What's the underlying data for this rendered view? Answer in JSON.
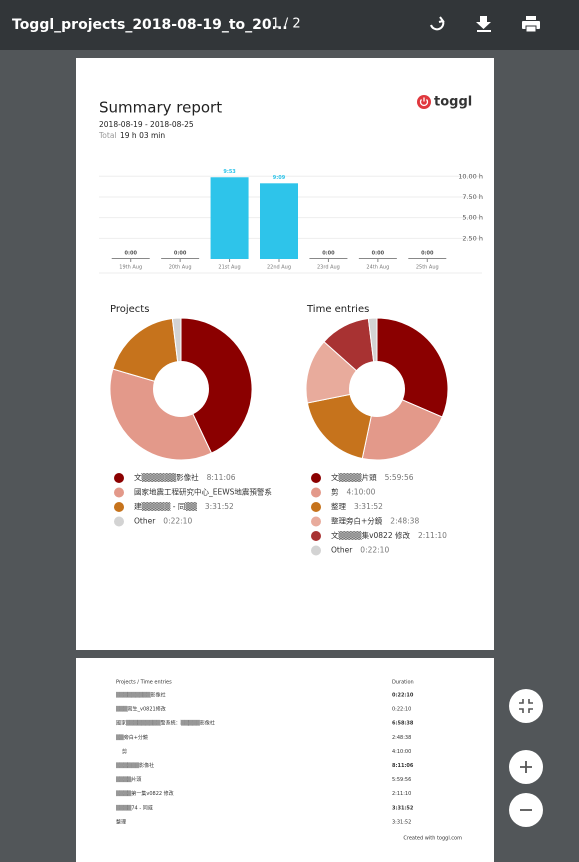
{
  "toolbar": {
    "file_name": "Toggl_projects_2018-08-19_to_20...",
    "page_indicator": "1 / 2"
  },
  "report": {
    "title": "Summary report",
    "date_range": "2018-08-19  -  2018-08-25",
    "total_label": "Total",
    "total_value": "19 h 03 min",
    "logo": "toggl",
    "bar_chart": {
      "type": "bar",
      "categories": [
        "19th Aug",
        "20th Aug",
        "21st Aug",
        "22nd Aug",
        "23rd Aug",
        "24th Aug",
        "25th Aug"
      ],
      "values": [
        0,
        0,
        9.88,
        9.15,
        0,
        0,
        0
      ],
      "value_labels": [
        "0:00",
        "0:00",
        "9:53",
        "9:09",
        "0:00",
        "0:00",
        "0:00"
      ],
      "color": "#2ec4ea",
      "ylim": [
        0,
        11
      ],
      "yticks": [
        {
          "value": 2.5,
          "label": "2.50 h"
        },
        {
          "value": 5,
          "label": "5.00 h"
        },
        {
          "value": 7.5,
          "label": "7.50 h"
        },
        {
          "value": 10,
          "label": "10.00 h"
        }
      ],
      "grid": true
    },
    "projects": {
      "type": "pie",
      "title": "Projects",
      "names": [
        "文▒▒▒▒▒▒影像社",
        "國家地震工程研究中心_EEWS地震預警系",
        "建▒▒▒▒▒ - 同▒▒",
        "Other"
      ],
      "values": [
        491.1,
        418.63,
        211.87,
        22.17
      ],
      "value_labels": [
        "8:11:06",
        null,
        "3:31:52",
        "0:22:10"
      ],
      "colors": [
        "#8b0000",
        "#e3998a",
        "#c6731c",
        "#d3d3d3"
      ]
    },
    "time_entries": {
      "type": "pie",
      "title": "Time entries",
      "names": [
        "文▒▒▒▒片頭",
        "剪",
        "整理",
        "整理旁白+分鏡",
        "文▒▒▒▒集v0822 修改",
        "Other"
      ],
      "values": [
        359.93,
        250,
        211.87,
        168.63,
        131.17,
        22.17
      ],
      "value_labels": [
        "5:59:56",
        "4:10:00",
        "3:31:52",
        "2:48:38",
        "2:11:10",
        "0:22:10"
      ],
      "colors": [
        "#8b0000",
        "#e3998a",
        "#c6731c",
        "#e8ab9c",
        "#a83232",
        "#d3d3d3"
      ]
    }
  },
  "page2": {
    "header": [
      "Projects / Time entries",
      "Duration"
    ],
    "rows": [
      [
        "▒▒▒▒▒▒▒▒▒影像社",
        "0:22:10"
      ],
      [
        "▒▒▒寫生_v0821修改",
        "0:22:10"
      ],
      [
        "國家▒▒▒▒▒▒▒▒▒警系統：▒▒▒▒▒影像社",
        "6:58:38"
      ],
      [
        "▒▒旁白+分鏡",
        "2:48:38"
      ],
      [
        "剪",
        "4:10:00"
      ],
      [
        "▒▒▒▒▒▒影像社",
        "8:11:06"
      ],
      [
        "▒▒▒▒片頭",
        "5:59:56"
      ],
      [
        "▒▒▒▒第一集v0822 修改",
        "2:11:10"
      ],
      [
        "▒▒▒▒74 - 同威",
        "3:31:52"
      ],
      [
        "整理",
        "3:31:52"
      ]
    ],
    "bold_rows": [
      0,
      2,
      5,
      8
    ],
    "footer": "Created with toggl.com"
  }
}
